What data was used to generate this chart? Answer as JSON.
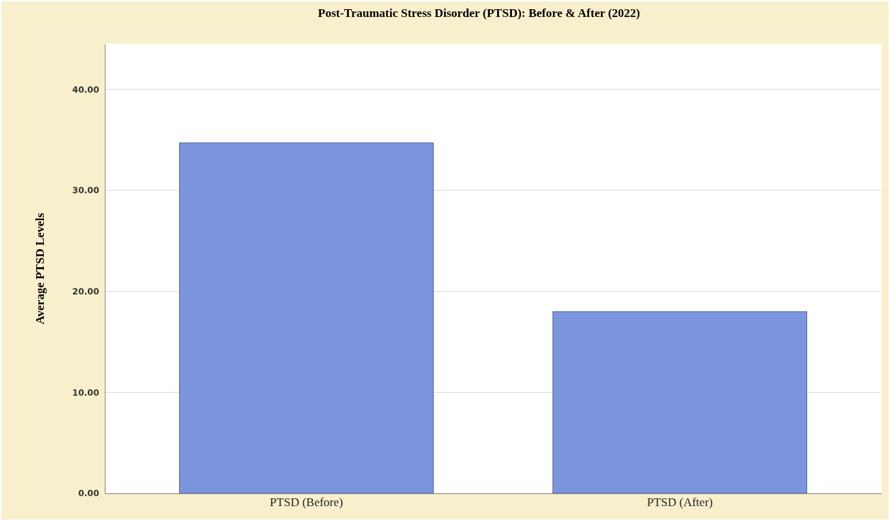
{
  "chart_data": {
    "type": "bar",
    "title": "Post-Traumatic Stress Disorder (PTSD): Before & After (2022)",
    "ylabel": "Average PTSD Levels",
    "categories": [
      "PTSD (Before)",
      "PTSD (After)"
    ],
    "values": [
      34.7,
      18.0
    ],
    "color": "#7b96de",
    "ylim": [
      0,
      44.5
    ],
    "yticks": [
      {
        "value": 0,
        "label": "0.00"
      },
      {
        "value": 10,
        "label": "10.00"
      },
      {
        "value": 20,
        "label": "20.00"
      },
      {
        "value": 30,
        "label": "30.00"
      },
      {
        "value": 40,
        "label": "40.00"
      }
    ],
    "grid": "y"
  }
}
